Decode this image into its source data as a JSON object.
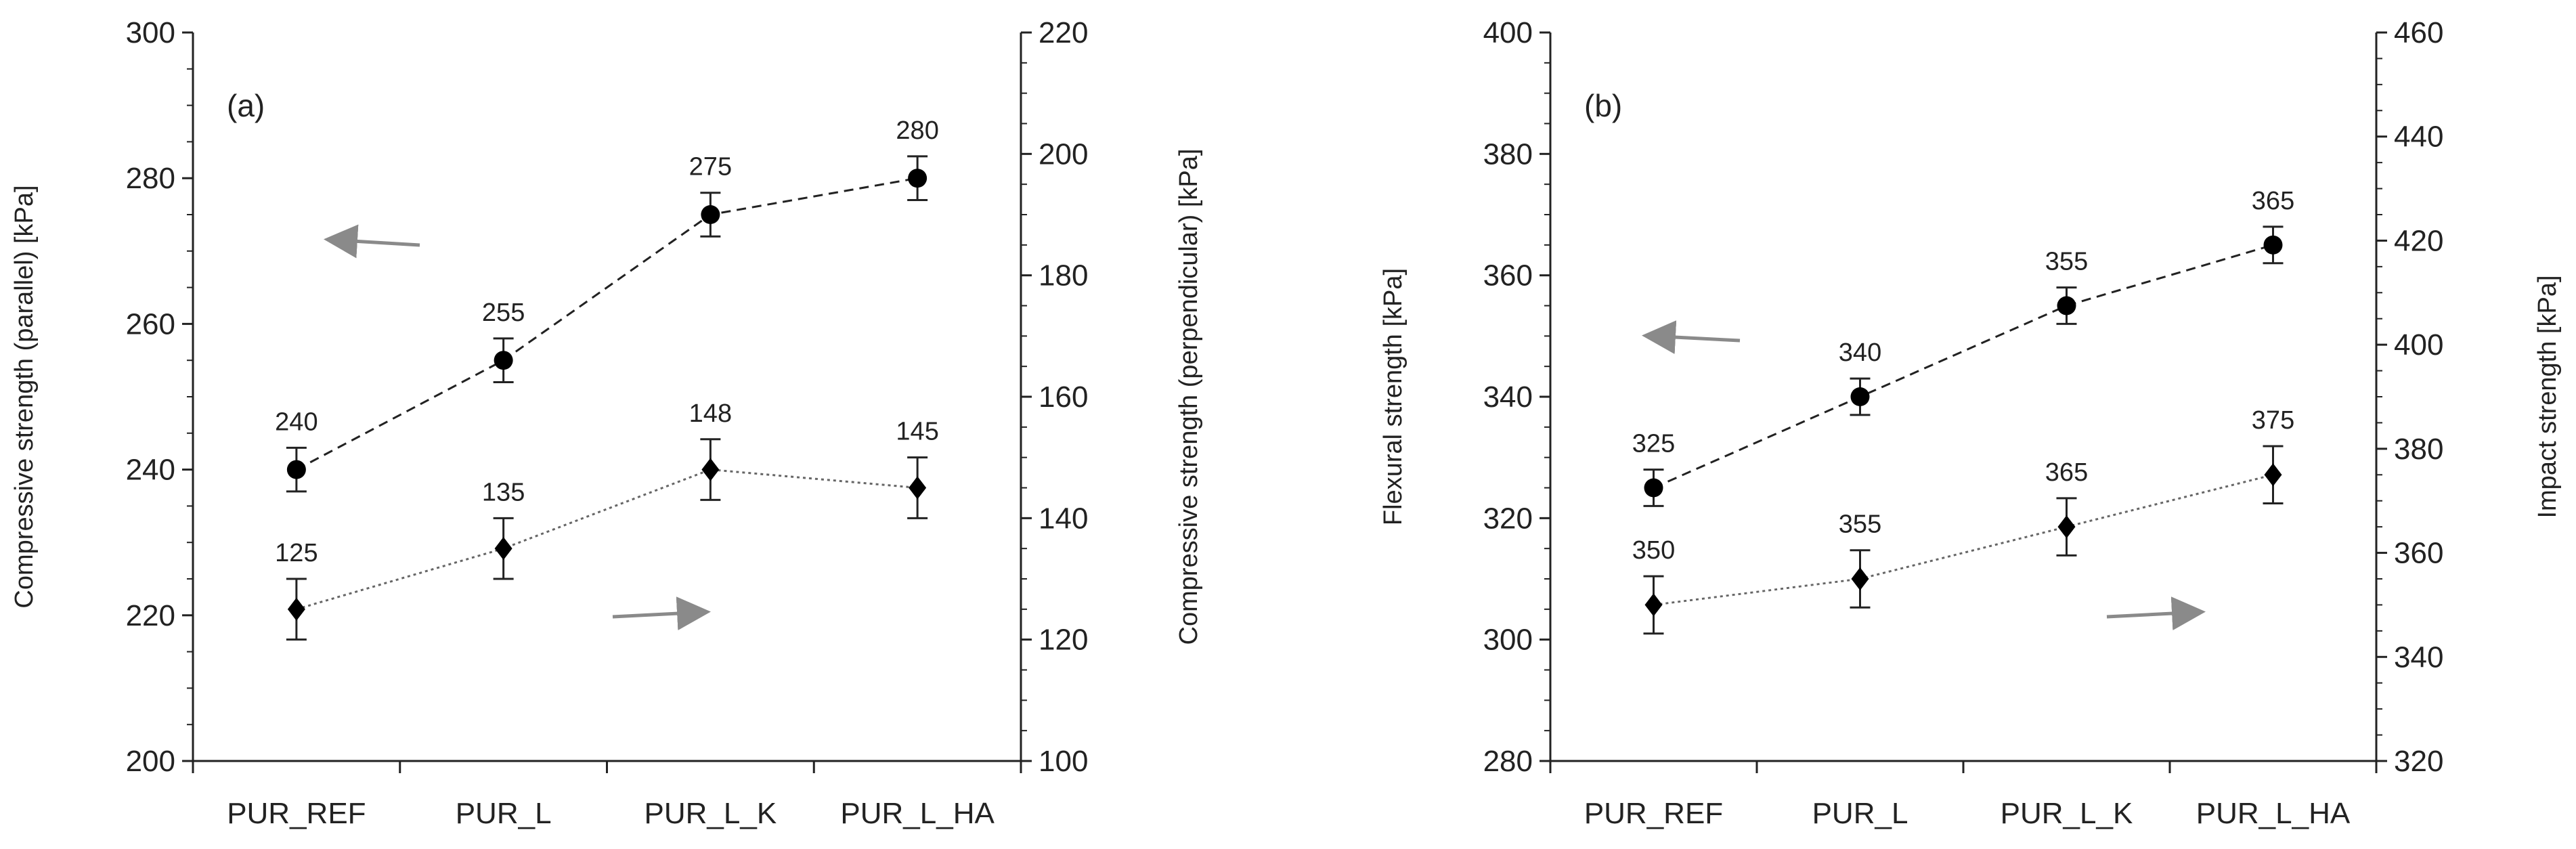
{
  "chart_data": [
    {
      "type": "line",
      "panel_label": "(a)",
      "categories": [
        "PUR_REF",
        "PUR_L",
        "PUR_L_K",
        "PUR_L_HA"
      ],
      "y_left": {
        "label": "Compressive strength (parallel) [kPa]",
        "lim": [
          200,
          300
        ],
        "ticks": [
          200,
          220,
          240,
          260,
          280,
          300
        ]
      },
      "y_right": {
        "label": "Compressive strength (perpendicular) [kPa]",
        "lim": [
          100,
          220
        ],
        "ticks": [
          100,
          120,
          140,
          160,
          180,
          200,
          220
        ]
      },
      "series": [
        {
          "axis": "left",
          "marker": "circle",
          "line": "dashed",
          "values": [
            240,
            255,
            275,
            280
          ],
          "errors": [
            3,
            3,
            3,
            3
          ],
          "labels": [
            "240",
            "255",
            "275",
            "280"
          ]
        },
        {
          "axis": "right",
          "marker": "diamond",
          "line": "dotted",
          "values": [
            125,
            135,
            148,
            145
          ],
          "errors": [
            5,
            5,
            5,
            5
          ],
          "labels": [
            "125",
            "135",
            "148",
            "145"
          ]
        }
      ],
      "grid": false
    },
    {
      "type": "line",
      "panel_label": "(b)",
      "categories": [
        "PUR_REF",
        "PUR_L",
        "PUR_L_K",
        "PUR_L_HA"
      ],
      "y_left": {
        "label": "Flexural strength [kPa]",
        "lim": [
          280,
          400
        ],
        "ticks": [
          280,
          300,
          320,
          340,
          360,
          380,
          400
        ]
      },
      "y_right": {
        "label": "Impact strength [kPa]",
        "lim": [
          320,
          460
        ],
        "ticks": [
          320,
          340,
          360,
          380,
          400,
          420,
          440,
          460
        ]
      },
      "series": [
        {
          "axis": "left",
          "marker": "circle",
          "line": "dashed",
          "values": [
            325,
            340,
            355,
            365
          ],
          "errors": [
            3,
            3,
            3,
            3
          ],
          "labels": [
            "325",
            "340",
            "355",
            "365"
          ]
        },
        {
          "axis": "right",
          "marker": "diamond",
          "line": "dotted",
          "values": [
            350,
            355,
            365,
            375
          ],
          "errors": [
            5.5,
            5.5,
            5.5,
            5.5
          ],
          "labels": [
            "350",
            "355",
            "365",
            "375"
          ]
        }
      ],
      "grid": false
    }
  ]
}
